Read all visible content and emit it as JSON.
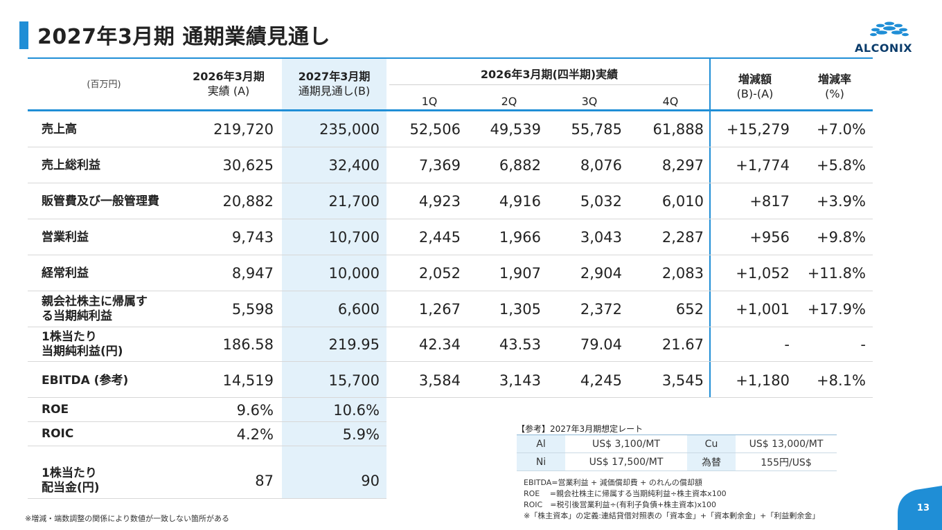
{
  "title": "2027年3月期 通期業績見通し",
  "logo_text": "ALCONIX",
  "header": {
    "unit": "(百万円)",
    "col_a_line1": "2026年3月期",
    "col_a_line2": "実績 (A)",
    "col_b_line1": "2027年3月期",
    "col_b_line2": "通期見通し(B)",
    "quarter_group": "2026年3月期(四半期)実績",
    "q1": "1Q",
    "q2": "2Q",
    "q3": "3Q",
    "q4": "4Q",
    "diff_line1": "増減額",
    "diff_line2": "(B)-(A)",
    "rate_line1": "増減率",
    "rate_line2": "(%)"
  },
  "rows": [
    {
      "label1": "売上高",
      "label2": "",
      "a": "219,720",
      "b": "235,000",
      "q1": "52,506",
      "q2": "49,539",
      "q3": "55,785",
      "q4": "61,888",
      "diff": "+15,279",
      "rate": "+7.0%"
    },
    {
      "label1": "売上総利益",
      "label2": "",
      "a": "30,625",
      "b": "32,400",
      "q1": "7,369",
      "q2": "6,882",
      "q3": "8,076",
      "q4": "8,297",
      "diff": "+1,774",
      "rate": "+5.8%"
    },
    {
      "label1": "販管費及び一般管理費",
      "label2": "",
      "a": "20,882",
      "b": "21,700",
      "q1": "4,923",
      "q2": "4,916",
      "q3": "5,032",
      "q4": "6,010",
      "diff": "+817",
      "rate": "+3.9%"
    },
    {
      "label1": "営業利益",
      "label2": "",
      "a": "9,743",
      "b": "10,700",
      "q1": "2,445",
      "q2": "1,966",
      "q3": "3,043",
      "q4": "2,287",
      "diff": "+956",
      "rate": "+9.8%"
    },
    {
      "label1": "経常利益",
      "label2": "",
      "a": "8,947",
      "b": "10,000",
      "q1": "2,052",
      "q2": "1,907",
      "q3": "2,904",
      "q4": "2,083",
      "diff": "+1,052",
      "rate": "+11.8%"
    },
    {
      "label1": "親会社株主に帰属す",
      "label2": "る当期純利益",
      "a": "5,598",
      "b": "6,600",
      "q1": "1,267",
      "q2": "1,305",
      "q3": "2,372",
      "q4": "652",
      "diff": "+1,001",
      "rate": "+17.9%"
    },
    {
      "label1": "1株当たり",
      "label2": "当期純利益(円)",
      "a": "186.58",
      "b": "219.95",
      "q1": "42.34",
      "q2": "43.53",
      "q3": "79.04",
      "q4": "21.67",
      "diff": "-",
      "rate": "-"
    },
    {
      "label1": "EBITDA (参考)",
      "label2": "",
      "a": "14,519",
      "b": "15,700",
      "q1": "3,584",
      "q2": "3,143",
      "q3": "4,245",
      "q4": "3,545",
      "diff": "+1,180",
      "rate": "+8.1%"
    }
  ],
  "extra_rows": [
    {
      "label1": "ROE",
      "label2": "",
      "a": "9.6%",
      "b": "10.6%"
    },
    {
      "label1": "ROIC",
      "label2": "",
      "a": "4.2%",
      "b": "5.9%"
    },
    {
      "label1": "1株当たり",
      "label2": "配当金(円)",
      "a": "87",
      "b": "90"
    }
  ],
  "rates": {
    "title": "【参考】2027年3月期想定レート",
    "al_key": "Al",
    "al_val": "US$ 3,100/MT",
    "cu_key": "Cu",
    "cu_val": "US$ 13,000/MT",
    "ni_key": "Ni",
    "ni_val": "US$ 17,500/MT",
    "fx_key": "為替",
    "fx_val": "155円/US$"
  },
  "definitions": [
    "EBITDA=営業利益 + 減価償却費 + のれんの償却額",
    "ROE　 =親会社株主に帰属する当期純利益÷株主資本x100",
    "ROIC　=税引後営業利益÷(有利子負債+株主資本)x100",
    "※「株主資本」の定義:連結貸借対照表の「資本金」+「資本剰余金」+「利益剰余金」"
  ],
  "footnote": "※増減・端数調整の関係により数値が一致しない箇所がある",
  "page_number": "13",
  "colors": {
    "accent": "#1f8ed6",
    "highlight": "#e3f1fa",
    "logo": "#0b3c6b"
  }
}
